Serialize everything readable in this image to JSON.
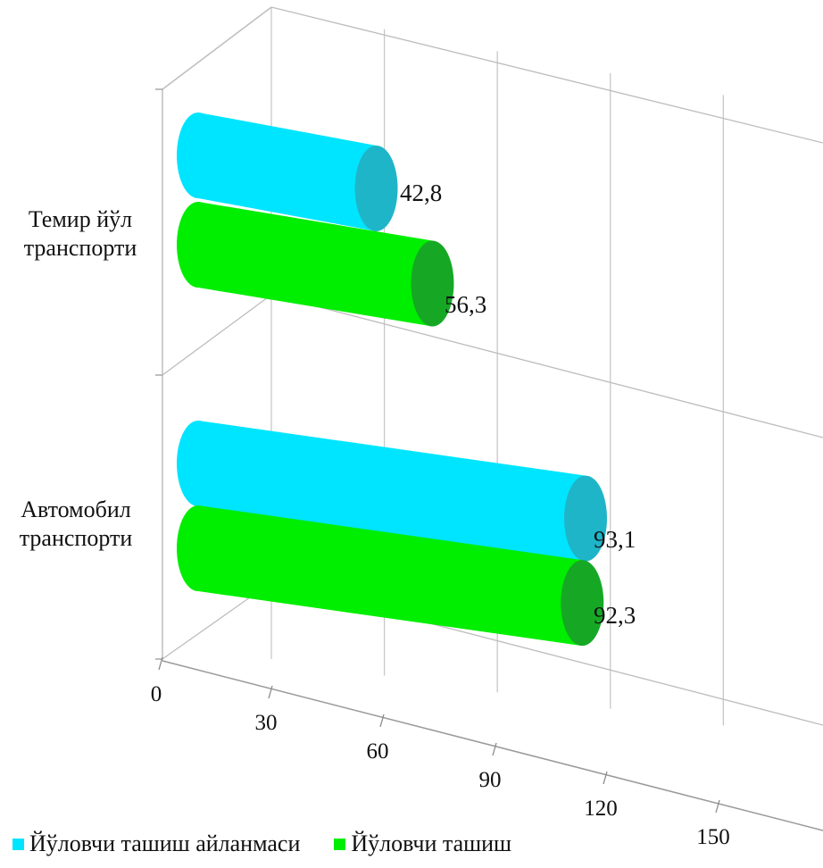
{
  "chart_data": {
    "type": "bar",
    "orientation": "horizontal",
    "style": "3d-cylinder",
    "categories": [
      "Темир йўл транспорти",
      "Автомобил транспорти"
    ],
    "category_lines": [
      [
        "Темир йўл",
        "транспорти"
      ],
      [
        "Автомобил",
        "транспорти"
      ]
    ],
    "series": [
      {
        "name": "Йўловчи ташиш айланмаси",
        "values": [
          42.8,
          93.1
        ],
        "labels": [
          "42,8",
          "93,1"
        ],
        "color": "#00e5ff",
        "cap_color": "#1fb5c8"
      },
      {
        "name": "Йўловчи ташиш",
        "values": [
          56.3,
          92.3
        ],
        "labels": [
          "56,3",
          "92,3"
        ],
        "color": "#00ee00",
        "cap_color": "#16a825"
      }
    ],
    "xlim": [
      0,
      150
    ],
    "x_ticks": [
      "0",
      "30",
      "60",
      "90",
      "120",
      "150"
    ],
    "grid": true,
    "legend_position": "bottom-left",
    "title": "",
    "xlabel": "",
    "ylabel": ""
  }
}
